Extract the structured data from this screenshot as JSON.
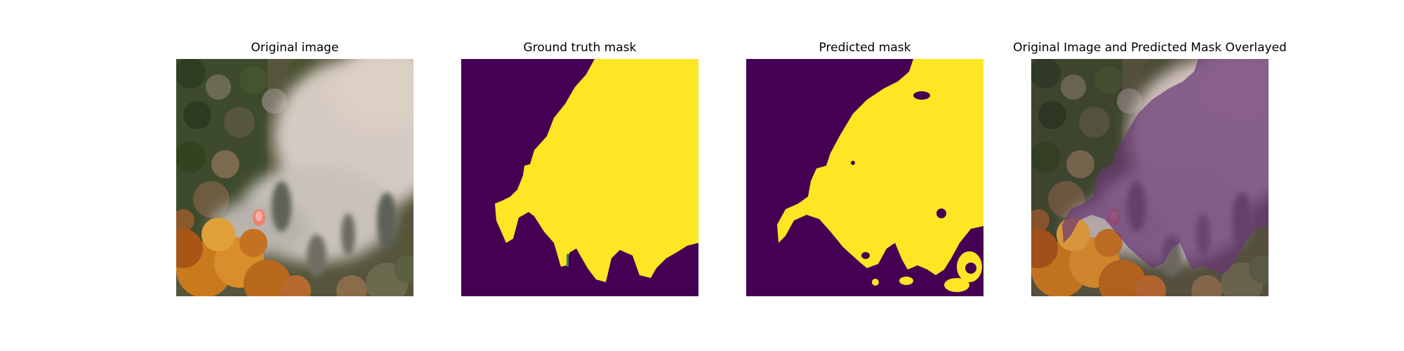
{
  "figure": {
    "panels": [
      {
        "title": "Original image"
      },
      {
        "title": "Ground truth mask"
      },
      {
        "title": "Predicted mask"
      },
      {
        "title": "Original Image and Predicted Mask Overlayed"
      }
    ]
  },
  "colors": {
    "mask_background": "#440154",
    "mask_foreground": "#fde725",
    "overlay_tint": "#6b3a78",
    "smoke": "#d6cbc2",
    "forest_dark": "#3e4a2c",
    "autumn_foliage": "#c97a1c",
    "flame": "#f08070"
  }
}
